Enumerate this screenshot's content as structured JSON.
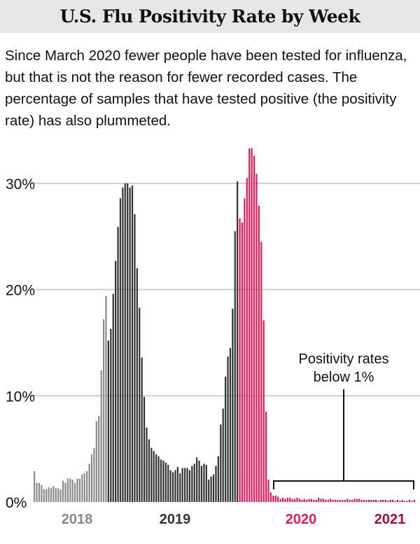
{
  "header": {
    "title": "U.S. Flu Positivity Rate by Week"
  },
  "subtitle": "Since March 2020 fewer people have been tested for influenza, but that is not the reason for fewer recorded cases. The percentage of samples that have tested positive (the positivity rate) has also plummeted.",
  "chart_data": {
    "type": "bar",
    "title": "U.S. Flu Positivity Rate by Week",
    "xlabel": "",
    "ylabel": "",
    "ylim": [
      0,
      34
    ],
    "yticks": [
      0,
      10,
      20,
      30
    ],
    "ytick_labels": [
      "0%",
      "10%",
      "20%",
      "30%"
    ],
    "grid": true,
    "xtick_labels": [
      {
        "label": "2018",
        "color": "#8a8a8a"
      },
      {
        "label": "2019",
        "color": "#333333"
      },
      {
        "label": "2020",
        "color": "#e8185a"
      },
      {
        "label": "2021",
        "color": "#a80a40"
      }
    ],
    "segments": [
      {
        "period": "2018",
        "color": "#8c8c8c",
        "values": [
          2.9,
          1.8,
          1.8,
          1.6,
          1.2,
          1.2,
          1.4,
          1.3,
          1.5,
          1.3,
          1.3,
          1.2,
          2.0,
          1.8,
          2.2,
          2.2,
          2.1,
          1.8,
          2.2,
          2.2,
          2.6,
          2.7,
          2.9,
          3.6,
          4.5,
          5.1,
          7.6,
          8.1,
          12.4,
          17.2,
          19.4
        ]
      },
      {
        "period": "2019",
        "color": "#333333",
        "values": [
          15.2,
          16.3,
          19.6,
          22.7,
          25.9,
          28.6,
          29.6,
          30.0,
          30.0,
          29.6,
          29.8,
          27.1,
          22.0,
          18.3,
          13.6,
          9.9,
          7.0,
          5.9,
          5.1,
          4.8,
          4.5,
          4.3,
          4.0,
          3.9,
          3.7,
          3.5,
          3.0,
          2.8,
          3.0,
          3.3,
          2.7,
          3.2,
          3.2,
          3.2,
          3.0,
          3.4,
          3.6,
          4.2,
          3.9,
          3.4,
          3.6,
          3.5,
          2.1,
          2.4,
          2.6,
          3.4,
          4.3,
          7.3,
          8.8,
          11.8,
          13.7,
          14.5,
          18.2,
          25.5,
          30.2
        ]
      },
      {
        "period": "2020",
        "color": "#e8185a",
        "values": [
          26.7,
          26.3,
          28.6,
          30.5,
          33.3,
          33.3,
          32.6,
          30.9,
          27.9,
          24.5,
          17.1,
          8.5,
          2.1,
          0.9,
          0.6,
          0.6,
          0.5,
          0.3,
          0.4,
          0.3,
          0.4,
          0.4,
          0.3,
          0.3,
          0.4,
          0.3,
          0.2,
          0.3,
          0.2,
          0.3,
          0.3,
          0.2,
          0.2,
          0.4,
          0.3,
          0.3,
          0.2,
          0.2,
          0.3,
          0.2,
          0.2,
          0.2,
          0.2,
          0.2,
          0.2,
          0.3,
          0.2,
          0.2,
          0.3,
          0.3,
          0.3,
          0.2,
          0.2,
          0.2
        ]
      },
      {
        "period": "2021",
        "color": "#c0114c",
        "values": [
          0.2,
          0.2,
          0.2,
          0.2,
          0.1,
          0.2,
          0.2,
          0.2,
          0.1,
          0.2,
          0.2,
          0.1,
          0.2,
          0.1,
          0.2,
          0.1,
          0.1,
          0.2,
          0.1,
          0.2
        ]
      }
    ],
    "annotation": {
      "line1": "Positivity rates",
      "line2": "below 1%",
      "threshold": 1
    }
  }
}
